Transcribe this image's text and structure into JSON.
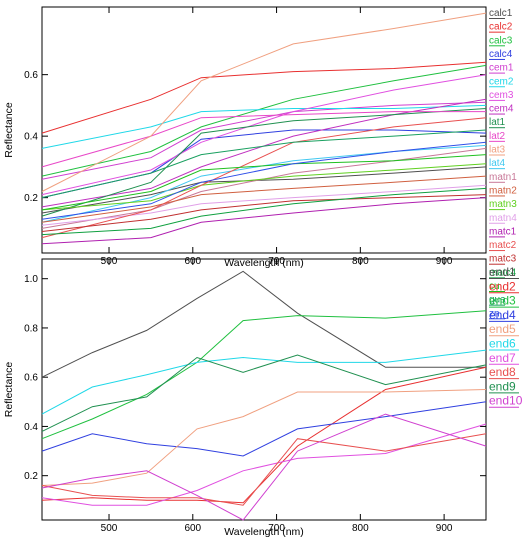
{
  "chart_data": [
    {
      "type": "line",
      "xlabel": "Wavelength (nm)",
      "ylabel": "Reflectance",
      "xlim": [
        420,
        950
      ],
      "ylim": [
        0.02,
        0.82
      ],
      "xticks": [
        500,
        600,
        700,
        800,
        900
      ],
      "yticks": [
        0.2,
        0.4,
        0.6
      ],
      "legend_position": "right",
      "x": [
        420,
        550,
        610,
        720,
        840,
        950
      ],
      "series": [
        {
          "name": "calc1",
          "color": "#505050",
          "values": [
            0.15,
            0.21,
            0.25,
            0.26,
            0.28,
            0.3
          ]
        },
        {
          "name": "calc2",
          "color": "#e83030",
          "values": [
            0.41,
            0.52,
            0.59,
            0.61,
            0.62,
            0.64
          ]
        },
        {
          "name": "calc3",
          "color": "#20c040",
          "values": [
            0.27,
            0.35,
            0.43,
            0.52,
            0.58,
            0.63
          ]
        },
        {
          "name": "calc4",
          "color": "#3040e0",
          "values": [
            0.2,
            0.28,
            0.39,
            0.42,
            0.42,
            0.41
          ]
        },
        {
          "name": "cem1",
          "color": "#d040d0",
          "values": [
            0.26,
            0.33,
            0.42,
            0.48,
            0.5,
            0.51
          ]
        },
        {
          "name": "cem2",
          "color": "#20d8e8",
          "values": [
            0.36,
            0.43,
            0.48,
            0.49,
            0.49,
            0.5
          ]
        },
        {
          "name": "cem3",
          "color": "#e050e0",
          "values": [
            0.21,
            0.29,
            0.38,
            0.48,
            0.55,
            0.6
          ]
        },
        {
          "name": "cem4",
          "color": "#c030c0",
          "values": [
            0.17,
            0.23,
            0.3,
            0.4,
            0.47,
            0.52
          ]
        },
        {
          "name": "lat1",
          "color": "#209050",
          "values": [
            0.14,
            0.25,
            0.41,
            0.45,
            0.47,
            0.49
          ]
        },
        {
          "name": "lat2",
          "color": "#e848c8",
          "values": [
            0.3,
            0.4,
            0.46,
            0.47,
            0.48,
            0.48
          ]
        },
        {
          "name": "lat3",
          "color": "#f0a080",
          "values": [
            0.22,
            0.4,
            0.58,
            0.7,
            0.75,
            0.8
          ]
        },
        {
          "name": "lat4",
          "color": "#40c8f0",
          "values": [
            0.12,
            0.2,
            0.27,
            0.32,
            0.35,
            0.37
          ]
        },
        {
          "name": "matn1",
          "color": "#c87898",
          "values": [
            0.1,
            0.16,
            0.22,
            0.28,
            0.32,
            0.36
          ]
        },
        {
          "name": "matn2",
          "color": "#d06040",
          "values": [
            0.12,
            0.17,
            0.21,
            0.23,
            0.25,
            0.27
          ]
        },
        {
          "name": "matn3",
          "color": "#60d020",
          "values": [
            0.16,
            0.19,
            0.24,
            0.27,
            0.29,
            0.31
          ]
        },
        {
          "name": "matn4",
          "color": "#e0a0e8",
          "values": [
            0.11,
            0.15,
            0.18,
            0.2,
            0.22,
            0.24
          ]
        },
        {
          "name": "matc1",
          "color": "#b020b0",
          "values": [
            0.05,
            0.07,
            0.12,
            0.15,
            0.18,
            0.2
          ]
        },
        {
          "name": "matc2",
          "color": "#e85050",
          "values": [
            0.07,
            0.16,
            0.24,
            0.38,
            0.43,
            0.46
          ]
        },
        {
          "name": "matc3",
          "color": "#c03030",
          "values": [
            0.09,
            0.13,
            0.16,
            0.19,
            0.2,
            0.21
          ]
        },
        {
          "name": "matc4",
          "color": "#10a040",
          "values": [
            0.08,
            0.1,
            0.14,
            0.18,
            0.21,
            0.23
          ]
        },
        {
          "name": "cu",
          "color": "#20c020",
          "values": [
            0.16,
            0.22,
            0.29,
            0.31,
            0.32,
            0.34
          ]
        },
        {
          "name": "gua",
          "color": "#1aa060",
          "values": [
            0.2,
            0.28,
            0.34,
            0.38,
            0.4,
            0.42
          ]
        },
        {
          "name": "zn",
          "color": "#3050e8",
          "values": [
            0.13,
            0.18,
            0.25,
            0.31,
            0.35,
            0.38
          ]
        }
      ]
    },
    {
      "type": "line",
      "xlabel": "Wavelength (nm)",
      "ylabel": "Reflectance",
      "xlim": [
        420,
        950
      ],
      "ylim": [
        0.02,
        1.08
      ],
      "xticks": [
        500,
        600,
        700,
        800,
        900
      ],
      "yticks": [
        0.2,
        0.4,
        0.6,
        0.8,
        1.0
      ],
      "legend_position": "right",
      "x": [
        420,
        480,
        545,
        605,
        660,
        725,
        830,
        950
      ],
      "series": [
        {
          "name": "end1",
          "color": "#505050",
          "values": [
            0.6,
            0.7,
            0.79,
            0.92,
            1.03,
            0.86,
            0.64,
            0.64
          ]
        },
        {
          "name": "end2",
          "color": "#e83030",
          "values": [
            0.1,
            0.11,
            0.1,
            0.1,
            0.09,
            0.32,
            0.55,
            0.64
          ]
        },
        {
          "name": "end3",
          "color": "#20c040",
          "values": [
            0.35,
            0.43,
            0.53,
            0.66,
            0.83,
            0.85,
            0.84,
            0.87
          ]
        },
        {
          "name": "end4",
          "color": "#3040e0",
          "values": [
            0.3,
            0.37,
            0.33,
            0.31,
            0.28,
            0.39,
            0.44,
            0.5
          ]
        },
        {
          "name": "end5",
          "color": "#f0a080",
          "values": [
            0.16,
            0.17,
            0.21,
            0.39,
            0.44,
            0.54,
            0.54,
            0.55
          ]
        },
        {
          "name": "end6",
          "color": "#20d8e8",
          "values": [
            0.45,
            0.56,
            0.61,
            0.66,
            0.68,
            0.66,
            0.66,
            0.71
          ]
        },
        {
          "name": "end7",
          "color": "#e050e0",
          "values": [
            0.11,
            0.08,
            0.08,
            0.14,
            0.22,
            0.27,
            0.29,
            0.41
          ]
        },
        {
          "name": "end8",
          "color": "#e85050",
          "values": [
            0.16,
            0.12,
            0.11,
            0.11,
            0.08,
            0.35,
            0.3,
            0.37
          ]
        },
        {
          "name": "end9",
          "color": "#209050",
          "values": [
            0.38,
            0.48,
            0.52,
            0.68,
            0.62,
            0.69,
            0.57,
            0.65
          ]
        },
        {
          "name": "end10",
          "color": "#d040d0",
          "values": [
            0.15,
            0.19,
            0.22,
            0.12,
            0.02,
            0.3,
            0.45,
            0.32
          ]
        }
      ]
    }
  ]
}
